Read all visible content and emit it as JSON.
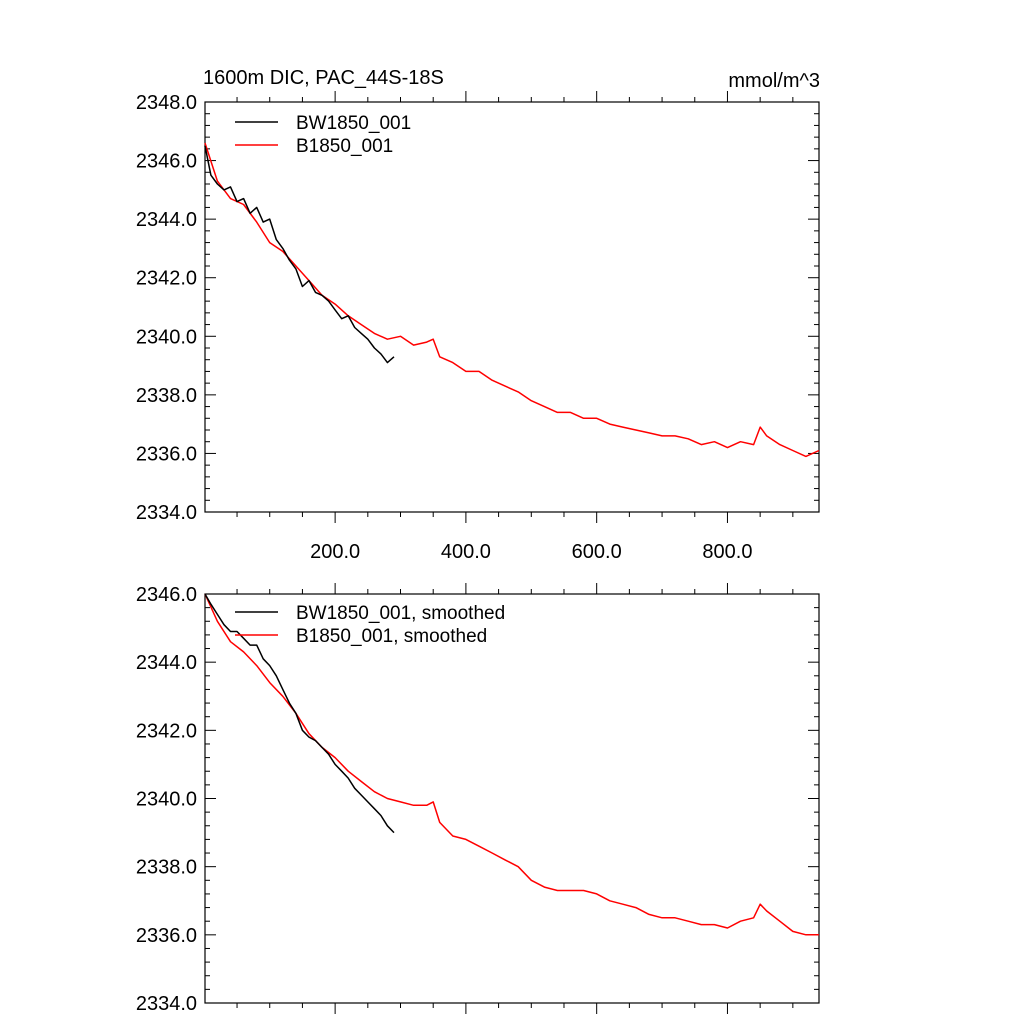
{
  "chart_data": [
    {
      "type": "line",
      "title": "1600m DIC, PAC_44S-18S",
      "units": "mmol/m^3",
      "xlim": [
        1,
        940
      ],
      "ylim": [
        2334.0,
        2348.0
      ],
      "xticks": [
        200.0,
        400.0,
        600.0,
        800.0
      ],
      "xtick_labels": [
        "200.0",
        "400.0",
        "600.0",
        "800.0"
      ],
      "yticks": [
        2334.0,
        2336.0,
        2338.0,
        2340.0,
        2342.0,
        2344.0,
        2346.0,
        2348.0
      ],
      "ytick_labels": [
        "2334.0",
        "2336.0",
        "2338.0",
        "2340.0",
        "2342.0",
        "2344.0",
        "2346.0",
        "2348.0"
      ],
      "legend_position": "top-left",
      "series": [
        {
          "name": "BW1850_001",
          "color": "#000000",
          "x": [
            1,
            10,
            20,
            30,
            40,
            50,
            60,
            70,
            80,
            90,
            100,
            110,
            120,
            130,
            140,
            150,
            160,
            170,
            180,
            190,
            200,
            210,
            220,
            230,
            240,
            250,
            260,
            270,
            280,
            290
          ],
          "y": [
            2346.5,
            2345.5,
            2345.2,
            2345.0,
            2345.1,
            2344.6,
            2344.7,
            2344.2,
            2344.4,
            2343.9,
            2344.0,
            2343.3,
            2343.0,
            2342.6,
            2342.3,
            2341.7,
            2341.9,
            2341.5,
            2341.4,
            2341.2,
            2340.9,
            2340.6,
            2340.7,
            2340.3,
            2340.1,
            2339.9,
            2339.6,
            2339.4,
            2339.1,
            2339.3
          ]
        },
        {
          "name": "B1850_001",
          "color": "#ff0000",
          "x": [
            1,
            20,
            40,
            60,
            80,
            100,
            120,
            140,
            160,
            180,
            200,
            220,
            240,
            260,
            280,
            300,
            320,
            340,
            350,
            360,
            380,
            400,
            420,
            440,
            460,
            480,
            500,
            520,
            540,
            560,
            580,
            600,
            620,
            640,
            660,
            680,
            700,
            720,
            740,
            760,
            780,
            800,
            820,
            840,
            850,
            860,
            880,
            900,
            920,
            940
          ],
          "y": [
            2346.6,
            2345.3,
            2344.7,
            2344.5,
            2343.9,
            2343.2,
            2342.9,
            2342.4,
            2341.9,
            2341.4,
            2341.1,
            2340.7,
            2340.4,
            2340.1,
            2339.9,
            2340.0,
            2339.7,
            2339.8,
            2339.9,
            2339.3,
            2339.1,
            2338.8,
            2338.8,
            2338.5,
            2338.3,
            2338.1,
            2337.8,
            2337.6,
            2337.4,
            2337.4,
            2337.2,
            2337.2,
            2337.0,
            2336.9,
            2336.8,
            2336.7,
            2336.6,
            2336.6,
            2336.5,
            2336.3,
            2336.4,
            2336.2,
            2336.4,
            2336.3,
            2336.9,
            2336.6,
            2336.3,
            2336.1,
            2335.9,
            2336.1
          ]
        }
      ]
    },
    {
      "type": "line",
      "xlim": [
        1,
        940
      ],
      "ylim": [
        2334.0,
        2346.0
      ],
      "xticks": [
        200.0,
        400.0,
        600.0,
        800.0
      ],
      "yticks": [
        2334.0,
        2336.0,
        2338.0,
        2340.0,
        2342.0,
        2344.0,
        2346.0
      ],
      "ytick_labels": [
        "2334.0",
        "2336.0",
        "2338.0",
        "2340.0",
        "2342.0",
        "2344.0",
        "2346.0"
      ],
      "legend_position": "top-left",
      "series": [
        {
          "name": "BW1850_001, smoothed",
          "color": "#000000",
          "x": [
            1,
            10,
            20,
            30,
            40,
            50,
            60,
            70,
            80,
            90,
            100,
            110,
            120,
            130,
            140,
            150,
            160,
            170,
            180,
            190,
            200,
            210,
            220,
            230,
            240,
            250,
            260,
            270,
            280,
            290
          ],
          "y": [
            2346.0,
            2345.7,
            2345.4,
            2345.1,
            2344.9,
            2344.9,
            2344.7,
            2344.5,
            2344.5,
            2344.1,
            2343.9,
            2343.6,
            2343.2,
            2342.8,
            2342.5,
            2342.0,
            2341.8,
            2341.7,
            2341.5,
            2341.3,
            2341.0,
            2340.8,
            2340.6,
            2340.3,
            2340.1,
            2339.9,
            2339.7,
            2339.5,
            2339.2,
            2339.0
          ]
        },
        {
          "name": "B1850_001, smoothed",
          "color": "#ff0000",
          "x": [
            1,
            20,
            40,
            60,
            80,
            100,
            120,
            140,
            160,
            180,
            200,
            220,
            240,
            260,
            280,
            300,
            320,
            340,
            350,
            360,
            380,
            400,
            420,
            440,
            460,
            480,
            500,
            520,
            540,
            560,
            580,
            600,
            620,
            640,
            660,
            680,
            700,
            720,
            740,
            760,
            780,
            800,
            820,
            840,
            850,
            860,
            880,
            900,
            920,
            940
          ],
          "y": [
            2346.0,
            2345.2,
            2344.6,
            2344.3,
            2343.9,
            2343.4,
            2343.0,
            2342.5,
            2341.9,
            2341.5,
            2341.2,
            2340.8,
            2340.5,
            2340.2,
            2340.0,
            2339.9,
            2339.8,
            2339.8,
            2339.9,
            2339.3,
            2338.9,
            2338.8,
            2338.6,
            2338.4,
            2338.2,
            2338.0,
            2337.6,
            2337.4,
            2337.3,
            2337.3,
            2337.3,
            2337.2,
            2337.0,
            2336.9,
            2336.8,
            2336.6,
            2336.5,
            2336.5,
            2336.4,
            2336.3,
            2336.3,
            2336.2,
            2336.4,
            2336.5,
            2336.9,
            2336.7,
            2336.4,
            2336.1,
            2336.0,
            2336.0
          ]
        }
      ]
    }
  ]
}
